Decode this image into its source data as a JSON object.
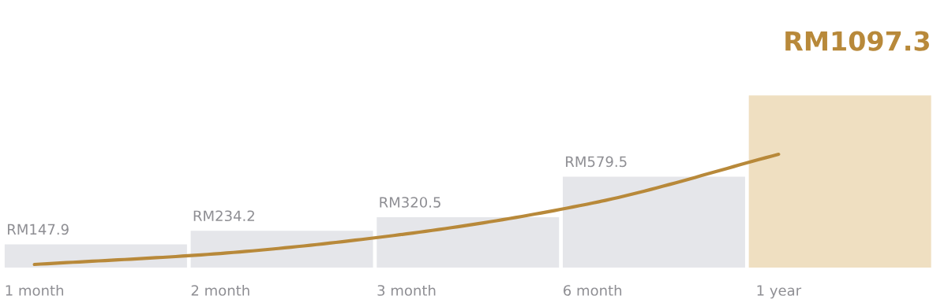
{
  "chart_data": {
    "type": "bar",
    "categories": [
      "1 month",
      "2 month",
      "3 month",
      "6 month",
      "1 year"
    ],
    "series": [
      {
        "colors": [
          "#e5e6ea",
          "#e5e6ea",
          "#e5e6ea",
          "#e5e6ea",
          "#efdfc1"
        ],
        "values": [
          147.9,
          234.2,
          320.5,
          579.5,
          1097.3
        ],
        "value_labels": [
          "RM147.9",
          "RM234.2",
          "RM320.5",
          "RM579.5",
          "RM1097.3"
        ]
      },
      {
        "type": "line",
        "color": "#b8893a",
        "values": [
          20,
          90,
          215,
          411,
          722
        ]
      }
    ],
    "marker": "none",
    "line_style": "solid"
  }
}
